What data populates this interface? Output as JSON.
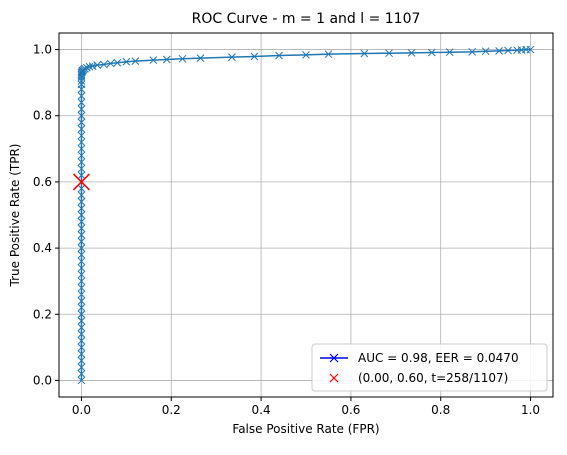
{
  "chart_data": {
    "type": "line",
    "title": "ROC Curve - m = 1 and l = 1107",
    "xlabel": "False Positive Rate (FPR)",
    "ylabel": "True Positive Rate (TPR)",
    "xlim": [
      -0.05,
      1.05
    ],
    "ylim": [
      -0.05,
      1.05
    ],
    "xticks": [
      0.0,
      0.2,
      0.4,
      0.6,
      0.8,
      1.0
    ],
    "yticks": [
      0.0,
      0.2,
      0.4,
      0.6,
      0.8,
      1.0
    ],
    "xtick_labels": [
      "0.0",
      "0.2",
      "0.4",
      "0.6",
      "0.8",
      "1.0"
    ],
    "ytick_labels": [
      "0.0",
      "0.2",
      "0.4",
      "0.6",
      "0.8",
      "1.0"
    ],
    "grid": true,
    "legend_position": "lower-right",
    "colors": {
      "curve": "#1f77b4",
      "legend_curve": "#0000ff",
      "marker_point": "#ff0000"
    },
    "series": [
      {
        "name": "AUC = 0.98, EER = 0.0470",
        "marker": "x",
        "x": [
          0.0,
          0.0,
          0.0,
          0.0,
          0.0,
          0.0,
          0.0,
          0.0,
          0.0,
          0.0,
          0.0,
          0.0,
          0.0,
          0.0,
          0.0,
          0.0,
          0.0,
          0.0,
          0.0,
          0.0,
          0.0,
          0.0,
          0.0,
          0.0,
          0.0,
          0.0,
          0.0,
          0.0,
          0.0,
          0.0,
          0.0,
          0.0,
          0.0,
          0.0,
          0.0,
          0.0,
          0.0,
          0.0,
          0.0,
          0.0,
          0.0,
          0.0,
          0.0,
          0.0,
          0.0,
          0.0,
          0.0,
          0.0,
          0.0,
          0.0,
          0.0,
          0.001,
          0.002,
          0.003,
          0.005,
          0.008,
          0.012,
          0.018,
          0.025,
          0.035,
          0.05,
          0.065,
          0.08,
          0.1,
          0.12,
          0.16,
          0.19,
          0.225,
          0.265,
          0.335,
          0.385,
          0.44,
          0.5,
          0.55,
          0.63,
          0.685,
          0.735,
          0.78,
          0.82,
          0.87,
          0.9,
          0.93,
          0.95,
          0.97,
          0.98,
          0.99,
          1.0
        ],
        "y": [
          0.0,
          0.02,
          0.04,
          0.06,
          0.08,
          0.1,
          0.12,
          0.14,
          0.16,
          0.18,
          0.2,
          0.22,
          0.24,
          0.26,
          0.28,
          0.3,
          0.32,
          0.34,
          0.36,
          0.38,
          0.4,
          0.42,
          0.44,
          0.46,
          0.48,
          0.5,
          0.52,
          0.54,
          0.56,
          0.58,
          0.6,
          0.62,
          0.64,
          0.66,
          0.68,
          0.7,
          0.72,
          0.74,
          0.76,
          0.78,
          0.8,
          0.82,
          0.84,
          0.86,
          0.88,
          0.895,
          0.905,
          0.915,
          0.92,
          0.925,
          0.93,
          0.932,
          0.935,
          0.937,
          0.94,
          0.942,
          0.945,
          0.948,
          0.95,
          0.953,
          0.955,
          0.958,
          0.96,
          0.963,
          0.965,
          0.968,
          0.97,
          0.972,
          0.974,
          0.977,
          0.979,
          0.982,
          0.984,
          0.986,
          0.988,
          0.989,
          0.99,
          0.991,
          0.992,
          0.993,
          0.995,
          0.996,
          0.997,
          0.998,
          0.999,
          1.0,
          1.0
        ]
      },
      {
        "name": "(0.00, 0.60, t=258/1107)",
        "marker": "x",
        "x": [
          0.0
        ],
        "y": [
          0.6
        ]
      }
    ]
  }
}
